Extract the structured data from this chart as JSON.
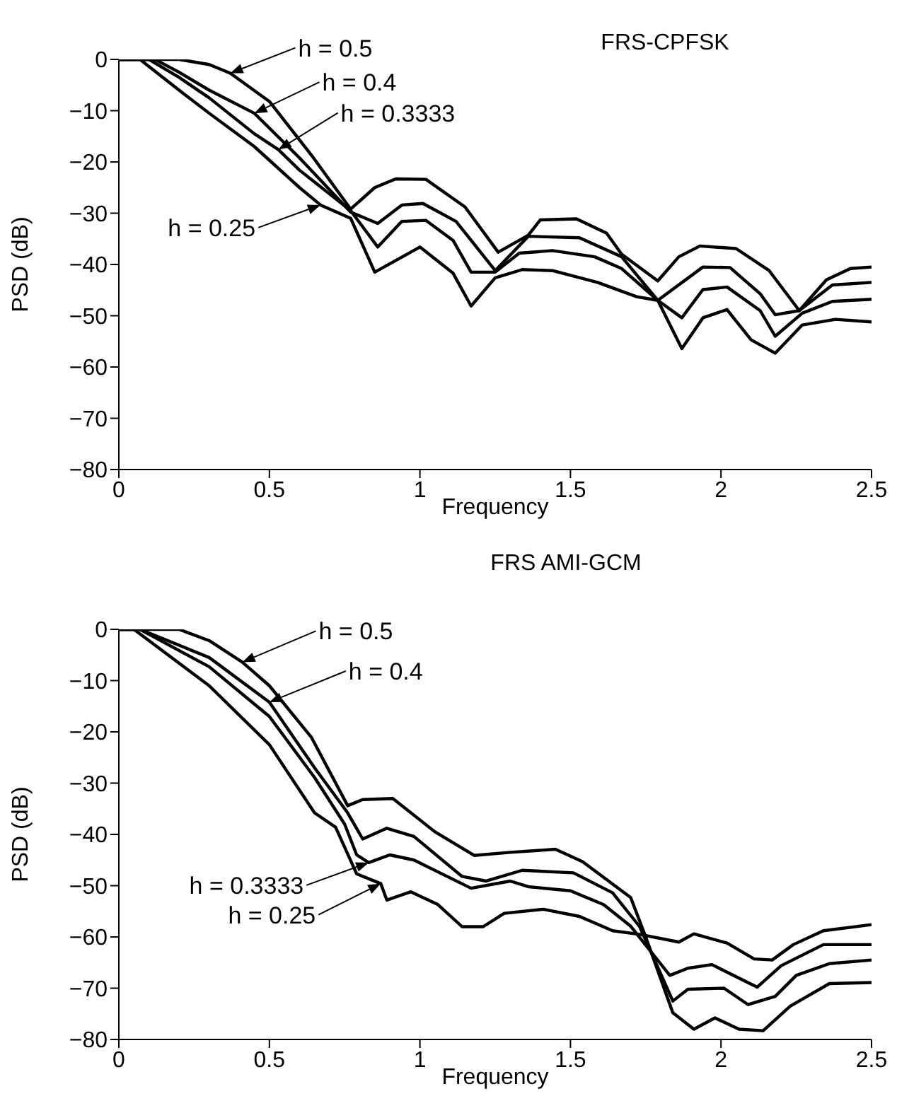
{
  "chart_data": [
    {
      "type": "line",
      "title": "FRS-CPFSK",
      "xlabel": "Frequency",
      "ylabel": "PSD  (dB)",
      "xlim": [
        0,
        2.5
      ],
      "xticks": [
        0,
        0.5,
        1,
        1.5,
        2,
        2.5
      ],
      "ylim": [
        -80,
        0
      ],
      "yticks": [
        0,
        {
          "value": -10,
          "label": "−10"
        },
        {
          "value": -20,
          "label": "−20"
        },
        {
          "value": -30,
          "label": "−30"
        },
        {
          "value": -40,
          "label": "−40"
        },
        {
          "value": -50,
          "label": "−50"
        },
        {
          "value": -60,
          "label": "−60"
        },
        {
          "value": -70,
          "label": "−70"
        },
        {
          "value": -80,
          "label": "−80"
        }
      ],
      "grid": false,
      "legend": false,
      "marker": "none",
      "line_style": "solid",
      "series": [
        {
          "color": "#000000",
          "x": [
            0,
            0.1,
            0.2,
            0.3,
            0.37,
            0.5,
            0.64,
            0.77,
            0.85,
            0.92,
            1.02,
            1.15,
            1.26,
            1.36,
            1.4,
            1.52,
            1.62,
            1.67,
            1.79,
            1.86,
            1.93,
            2.05,
            2.16,
            2.26,
            2.35,
            2.43,
            2.5
          ],
          "values": [
            0,
            0,
            0,
            -1,
            -2.7,
            -8.2,
            -18.7,
            -29.2,
            -25,
            -23.3,
            -23.4,
            -28.8,
            -37.6,
            -34.3,
            -31.3,
            -31.1,
            -33.9,
            -38,
            -43.2,
            -38.5,
            -36.4,
            -36.9,
            -41.2,
            -49,
            -43,
            -40.8,
            -40.5
          ]
        },
        {
          "color": "#000000",
          "x": [
            0,
            0.12,
            0.2,
            0.3,
            0.45,
            0.6,
            0.77,
            0.86,
            0.94,
            1.01,
            1.12,
            1.25,
            1.36,
            1.53,
            1.67,
            1.79,
            1.94,
            2.03,
            2.13,
            2.18,
            2.26,
            2.37,
            2.5
          ],
          "values": [
            0,
            0,
            -2.5,
            -6,
            -10.5,
            -19.2,
            -29.8,
            -32,
            -28.4,
            -28.1,
            -31.6,
            -41.2,
            -34.5,
            -34.8,
            -38.5,
            -47,
            -40.5,
            -40.6,
            -45.7,
            -49.8,
            -49,
            -44,
            -43.5
          ]
        },
        {
          "color": "#000000",
          "x": [
            0,
            0.1,
            0.2,
            0.3,
            0.45,
            0.53,
            0.6,
            0.77,
            0.86,
            0.94,
            1.02,
            1.11,
            1.17,
            1.25,
            1.33,
            1.44,
            1.58,
            1.67,
            1.79,
            1.87,
            1.94,
            2.02,
            2.13,
            2.18,
            2.27,
            2.37,
            2.5
          ],
          "values": [
            0,
            0,
            -3.5,
            -7.5,
            -14.5,
            -17.6,
            -21.6,
            -29.5,
            -36.6,
            -31.6,
            -31.4,
            -35.3,
            -41.5,
            -41.5,
            -37.8,
            -37.3,
            -38.5,
            -40.8,
            -47,
            -50.4,
            -44.9,
            -44.4,
            -49,
            -54,
            -49.5,
            -47.2,
            -46.8
          ]
        },
        {
          "color": "#000000",
          "x": [
            0,
            0.07,
            0.2,
            0.3,
            0.45,
            0.6,
            0.67,
            0.77,
            0.85,
            1.0,
            1.11,
            1.17,
            1.25,
            1.34,
            1.44,
            1.59,
            1.72,
            1.79,
            1.87,
            1.94,
            2.02,
            2.1,
            2.18,
            2.27,
            2.38,
            2.5
          ],
          "values": [
            0,
            0,
            -6,
            -10.5,
            -17,
            -25,
            -28.4,
            -31,
            -41.5,
            -36.6,
            -41.7,
            -48.1,
            -42.6,
            -41,
            -41.2,
            -43.5,
            -46.3,
            -47,
            -56.4,
            -50.4,
            -48.8,
            -54.7,
            -57.3,
            -51.8,
            -50.7,
            -51.2
          ]
        }
      ],
      "annotations": [
        {
          "text": "h = 0.5",
          "x": 0.37,
          "y": -2.7
        },
        {
          "text": "h = 0.4",
          "x": 0.45,
          "y": -10.5
        },
        {
          "text": "h = 0.3333",
          "x": 0.53,
          "y": -17.6
        },
        {
          "text": "h = 0.25",
          "x": 0.67,
          "y": -28.4
        }
      ]
    },
    {
      "type": "line",
      "title": "FRS AMI-GCM",
      "xlabel": "Frequency",
      "ylabel": "PSD  (dB)",
      "xlim": [
        0,
        2.5
      ],
      "xticks": [
        0,
        0.5,
        1,
        1.5,
        2,
        2.5
      ],
      "ylim": [
        -80,
        0
      ],
      "yticks": [
        0,
        {
          "value": -10,
          "label": "−10"
        },
        {
          "value": -20,
          "label": "−20"
        },
        {
          "value": -30,
          "label": "−30"
        },
        {
          "value": -40,
          "label": "−40"
        },
        {
          "value": -50,
          "label": "−50"
        },
        {
          "value": -60,
          "label": "−60"
        },
        {
          "value": -70,
          "label": "−70"
        },
        {
          "value": -80,
          "label": "−80"
        }
      ],
      "grid": false,
      "legend": false,
      "marker": "none",
      "line_style": "solid",
      "series": [
        {
          "color": "#000000",
          "x": [
            0,
            0.1,
            0.2,
            0.3,
            0.41,
            0.5,
            0.64,
            0.76,
            0.81,
            0.91,
            1.05,
            1.18,
            1.3,
            1.45,
            1.54,
            1.7,
            1.75,
            1.84,
            1.91,
            1.98,
            2.06,
            2.14,
            2.23,
            2.36,
            2.5
          ],
          "values": [
            0,
            0,
            0,
            -2.2,
            -6.4,
            -11,
            -21.1,
            -34.4,
            -33.2,
            -33,
            -39.5,
            -44.1,
            -43.5,
            -42.9,
            -45.3,
            -52.3,
            -60,
            -74.8,
            -78,
            -75.8,
            -78,
            -78.3,
            -73.5,
            -69.1,
            -68.9
          ]
        },
        {
          "color": "#000000",
          "x": [
            0,
            0.07,
            0.3,
            0.5,
            0.65,
            0.76,
            0.81,
            0.89,
            0.98,
            1.14,
            1.22,
            1.34,
            1.51,
            1.64,
            1.73,
            1.84,
            1.89,
            2.01,
            2.09,
            2.18,
            2.25,
            2.36,
            2.5
          ],
          "values": [
            0,
            0,
            -5.5,
            -14.2,
            -27,
            -35.8,
            -40.9,
            -38.8,
            -40.4,
            -48.2,
            -49.1,
            -47,
            -47.5,
            -51.4,
            -58,
            -72.5,
            -70.2,
            -70,
            -73.2,
            -71.6,
            -67.5,
            -65.2,
            -64.5
          ]
        },
        {
          "color": "#000000",
          "x": [
            0,
            0.07,
            0.3,
            0.5,
            0.65,
            0.75,
            0.79,
            0.83,
            0.9,
            0.98,
            1.17,
            1.3,
            1.36,
            1.5,
            1.61,
            1.7,
            1.83,
            1.89,
            1.97,
            2.12,
            2.2,
            2.34,
            2.5
          ],
          "values": [
            0,
            0,
            -7.3,
            -17,
            -28.9,
            -38,
            -44,
            -45.5,
            -44,
            -45,
            -50.5,
            -49.1,
            -50.2,
            -51,
            -53.7,
            -57.9,
            -67.5,
            -66.1,
            -65.4,
            -69.8,
            -65.6,
            -61.5,
            -61.5
          ]
        },
        {
          "color": "#000000",
          "x": [
            0,
            0.05,
            0.3,
            0.5,
            0.65,
            0.72,
            0.79,
            0.87,
            0.89,
            0.97,
            1.06,
            1.14,
            1.21,
            1.28,
            1.41,
            1.53,
            1.64,
            1.73,
            1.86,
            1.91,
            2.02,
            2.11,
            2.17,
            2.24,
            2.34,
            2.5
          ],
          "values": [
            0,
            0,
            -11,
            -22.5,
            -35.8,
            -38.6,
            -47.7,
            -49.6,
            -52.8,
            -51.2,
            -53.7,
            -58,
            -58,
            -55.4,
            -54.6,
            -56,
            -58.8,
            -59.5,
            -61,
            -59.4,
            -61.2,
            -64.3,
            -64.5,
            -61.5,
            -58.8,
            -57.6
          ]
        }
      ],
      "annotations": [
        {
          "text": "h = 0.5",
          "x": 0.41,
          "y": -6.4
        },
        {
          "text": "h = 0.4",
          "x": 0.5,
          "y": -14.2
        },
        {
          "text": "h = 0.3333",
          "x": 0.83,
          "y": -45.5
        },
        {
          "text": "h = 0.25",
          "x": 0.87,
          "y": -49.6
        }
      ]
    }
  ]
}
